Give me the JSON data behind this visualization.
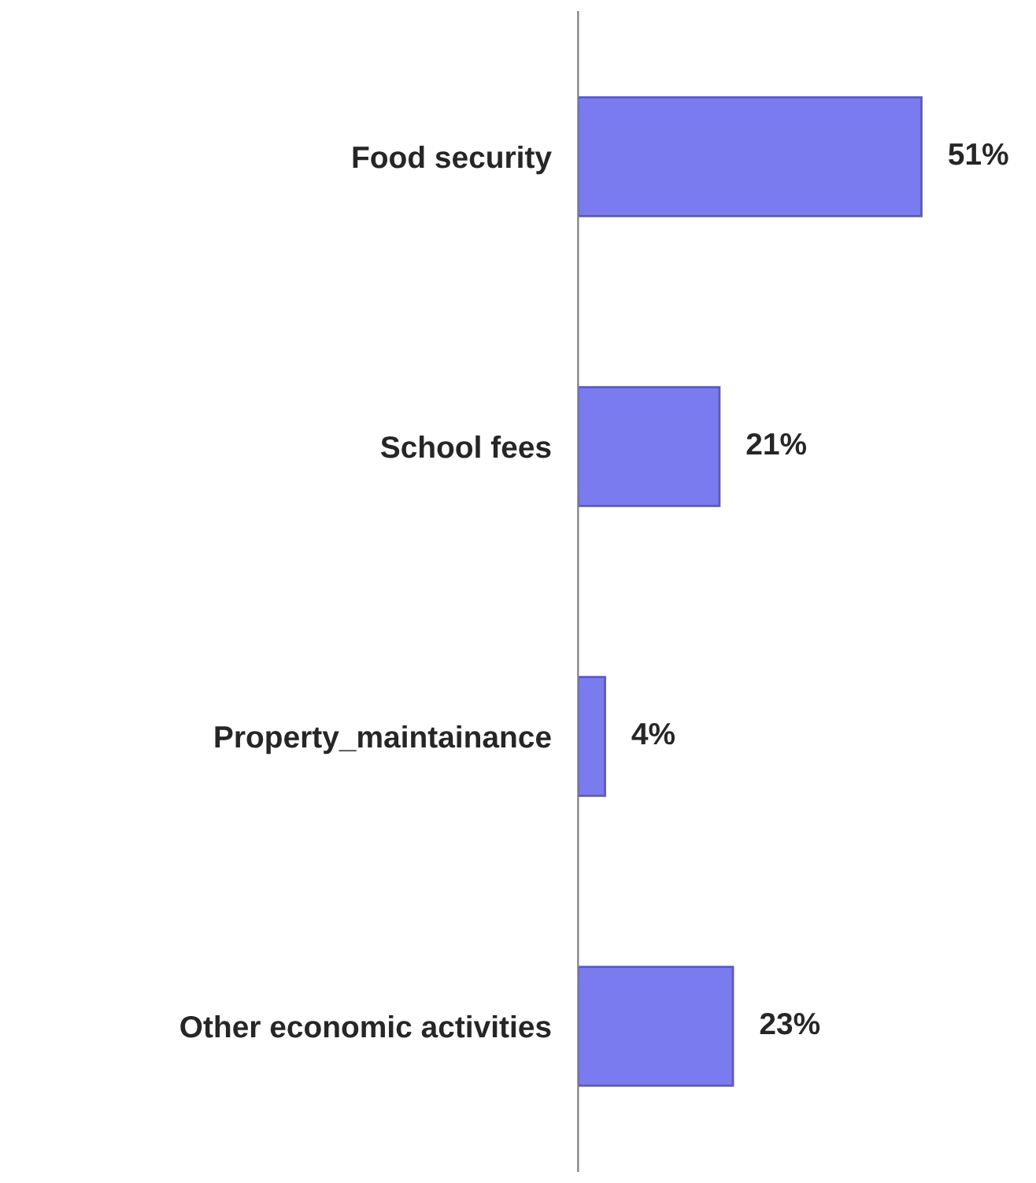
{
  "chart_data": {
    "type": "bar",
    "orientation": "horizontal",
    "categories": [
      "Food security",
      "School fees",
      "Property_maintainance",
      "Other economic activities"
    ],
    "values": [
      51,
      21,
      4,
      23
    ],
    "value_labels": [
      "51%",
      "21%",
      "4%",
      "23%"
    ],
    "color": "#7b7bf0",
    "tick_labels": "y",
    "grid": false,
    "legend": false
  }
}
